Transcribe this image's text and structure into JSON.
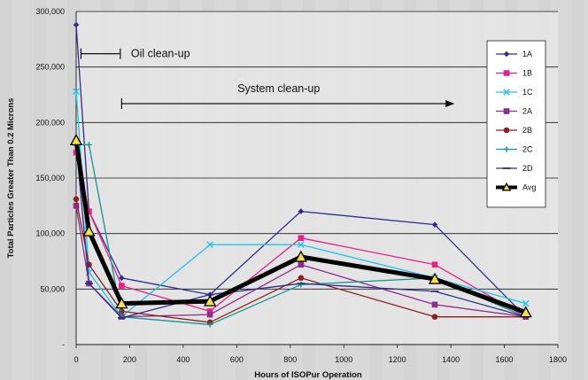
{
  "chart_data": {
    "type": "line",
    "xlabel": "Hours of ISOPur Operation",
    "ylabel": "Total Particles Greater Than 0.2 Microns",
    "xlim": [
      0,
      1800
    ],
    "ylim": [
      0,
      300000
    ],
    "xticks": [
      0,
      200,
      400,
      600,
      800,
      1000,
      1200,
      1400,
      1600,
      1800
    ],
    "yticks": [
      0,
      50000,
      100000,
      150000,
      200000,
      250000,
      300000
    ],
    "xtick_labels": [
      "0",
      "200",
      "400",
      "600",
      "800",
      "1000",
      "1200",
      "1400",
      "1600",
      "1800"
    ],
    "ytick_labels": [
      "-",
      "50,000",
      "100,000",
      "150,000",
      "200,000",
      "250,000",
      "300,000"
    ],
    "grid": "horizontal",
    "legend_position": "right",
    "annotations": [
      {
        "text": "Oil clean-up",
        "x_start": 18,
        "x_end": 165,
        "y": 262000,
        "arrow": false
      },
      {
        "text": "System clean-up",
        "x_start": 170,
        "x_end": 1410,
        "y": 217000,
        "arrow": true
      }
    ],
    "series": [
      {
        "name": "1A",
        "color": "#2e2e8f",
        "marker": "diamond",
        "points": [
          [
            0,
            288000
          ],
          [
            48,
            120000
          ],
          [
            170,
            60000
          ],
          [
            500,
            45000
          ],
          [
            840,
            120000
          ],
          [
            1340,
            108000
          ],
          [
            1680,
            25000
          ]
        ]
      },
      {
        "name": "1B",
        "color": "#e8208a",
        "marker": "square",
        "points": [
          [
            0,
            173000
          ],
          [
            48,
            120000
          ],
          [
            170,
            53000
          ],
          [
            500,
            30000
          ],
          [
            840,
            96000
          ],
          [
            1340,
            72000
          ],
          [
            1680,
            25000
          ]
        ]
      },
      {
        "name": "1C",
        "color": "#1ec3e8",
        "marker": "x",
        "points": [
          [
            0,
            228000
          ],
          [
            48,
            65000
          ],
          [
            170,
            25000
          ],
          [
            500,
            90000
          ],
          [
            840,
            90000
          ],
          [
            1340,
            60000
          ],
          [
            1680,
            37000
          ]
        ]
      },
      {
        "name": "2A",
        "color": "#8e2c8e",
        "marker": "square",
        "points": [
          [
            0,
            125000
          ],
          [
            48,
            55000
          ],
          [
            170,
            25000
          ],
          [
            500,
            27000
          ],
          [
            840,
            72000
          ],
          [
            1340,
            36000
          ],
          [
            1680,
            25000
          ]
        ]
      },
      {
        "name": "2B",
        "color": "#8a2020",
        "marker": "circle",
        "points": [
          [
            0,
            131000
          ],
          [
            48,
            72000
          ],
          [
            170,
            30000
          ],
          [
            500,
            20000
          ],
          [
            840,
            60000
          ],
          [
            1340,
            25000
          ],
          [
            1680,
            25000
          ]
        ]
      },
      {
        "name": "2C",
        "color": "#149494",
        "marker": "plus",
        "points": [
          [
            0,
            180000
          ],
          [
            48,
            180000
          ],
          [
            170,
            25000
          ],
          [
            500,
            18000
          ],
          [
            840,
            54000
          ],
          [
            1340,
            60000
          ],
          [
            1680,
            25000
          ]
        ]
      },
      {
        "name": "2D",
        "color": "#2d2d8a",
        "marker": "dash",
        "points": [
          [
            0,
            180000
          ],
          [
            48,
            55000
          ],
          [
            170,
            24000
          ],
          [
            500,
            45000
          ],
          [
            840,
            55000
          ],
          [
            1340,
            48000
          ],
          [
            1680,
            25000
          ]
        ]
      },
      {
        "name": "Avg",
        "color": "#000000",
        "marker": "triangle",
        "bold": true,
        "points": [
          [
            0,
            184000
          ],
          [
            48,
            102000
          ],
          [
            170,
            37000
          ],
          [
            500,
            39000
          ],
          [
            840,
            79000
          ],
          [
            1340,
            59000
          ],
          [
            1680,
            29000
          ]
        ]
      }
    ]
  }
}
